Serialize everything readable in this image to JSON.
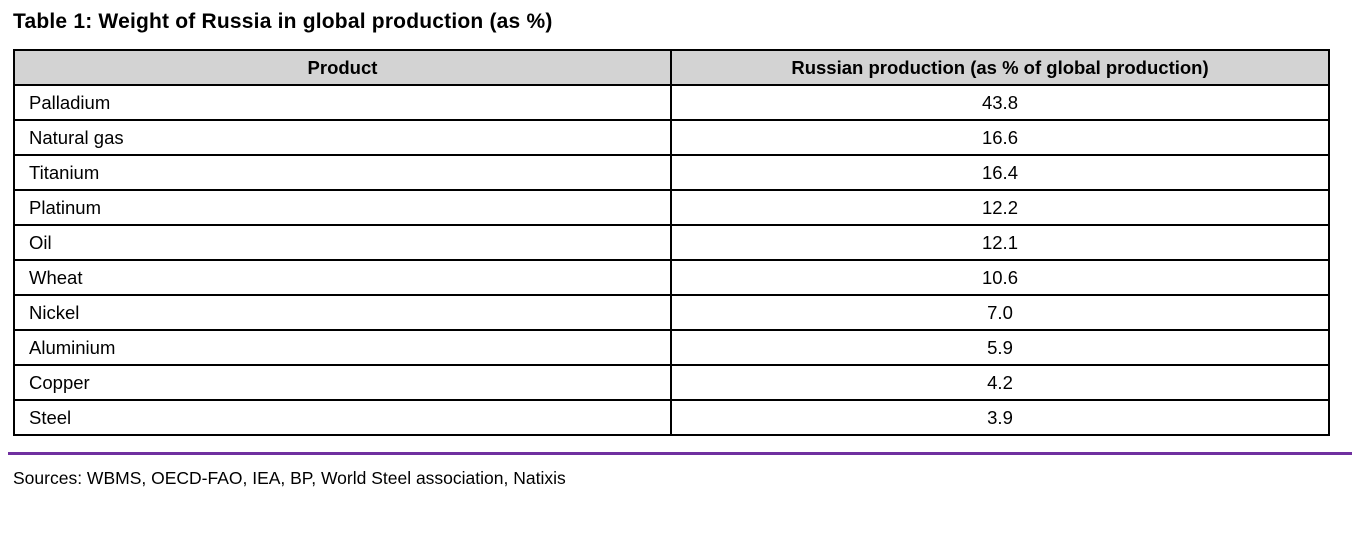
{
  "title": "Table 1: Weight of Russia in global production (as %)",
  "table": {
    "columns": [
      "Product",
      "Russian production (as % of global production)"
    ],
    "rows": [
      {
        "product": "Palladium",
        "value": "43.8"
      },
      {
        "product": "Natural gas",
        "value": "16.6"
      },
      {
        "product": "Titanium",
        "value": "16.4"
      },
      {
        "product": "Platinum",
        "value": "12.2"
      },
      {
        "product": "Oil",
        "value": "12.1"
      },
      {
        "product": "Wheat",
        "value": "10.6"
      },
      {
        "product": "Nickel",
        "value": "7.0"
      },
      {
        "product": "Aluminium",
        "value": "5.9"
      },
      {
        "product": "Copper",
        "value": "4.2"
      },
      {
        "product": "Steel",
        "value": "3.9"
      }
    ]
  },
  "sources": "Sources: WBMS, OECD-FAO, IEA, BP, World Steel association, Natixis",
  "colors": {
    "header_bg": "#d3d3d3",
    "table_border": "#000000",
    "divider_line": "#7030a0",
    "text": "#000000",
    "background": "#ffffff"
  },
  "chart_data": {
    "type": "table",
    "title": "Table 1: Weight of Russia in global production (as %)",
    "categories": [
      "Palladium",
      "Natural gas",
      "Titanium",
      "Platinum",
      "Oil",
      "Wheat",
      "Nickel",
      "Aluminium",
      "Copper",
      "Steel"
    ],
    "values": [
      43.8,
      16.6,
      16.4,
      12.2,
      12.1,
      10.6,
      7.0,
      5.9,
      4.2,
      3.9
    ],
    "xlabel": "Product",
    "ylabel": "Russian production (as % of global production)"
  }
}
